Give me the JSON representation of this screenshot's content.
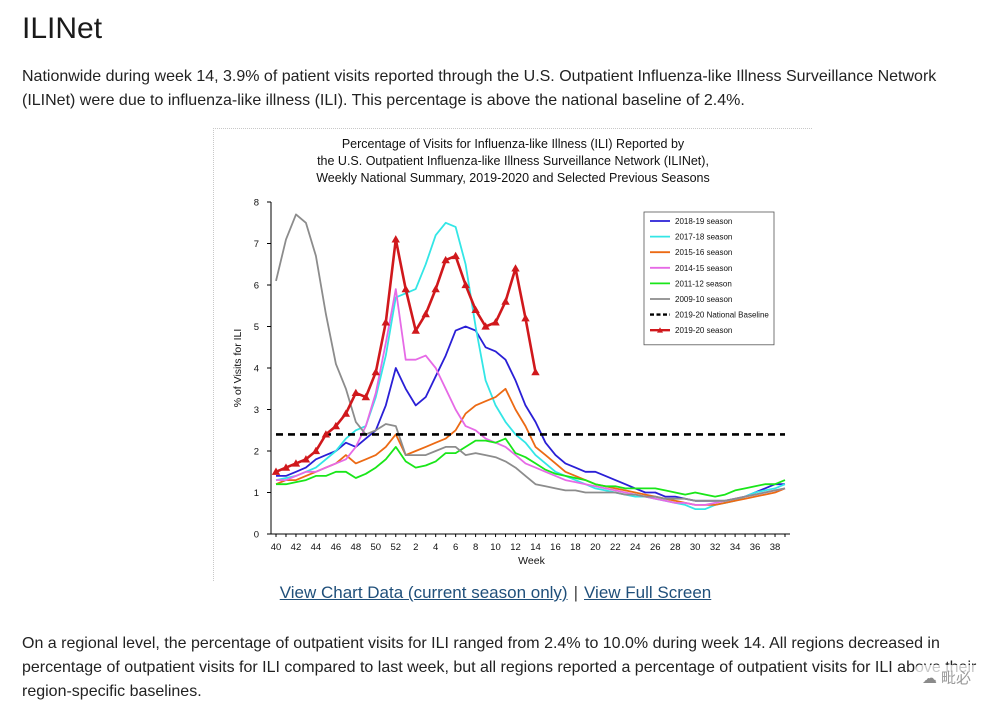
{
  "page": {
    "title": "ILINet",
    "intro": "Nationwide during week 14, 3.9% of patient visits reported through the U.S. Outpatient Influenza-like Illness Surveillance Network (ILINet) were due to influenza-like illness (ILI). This percentage is above the national baseline of 2.4%.",
    "links": {
      "chart_data": "View Chart Data (current season only)",
      "separator": "|",
      "full_screen": "View Full Screen"
    },
    "regional": "On a regional level, the percentage of outpatient visits for ILI ranged from 2.4% to 10.0% during week 14. All regions decreased in percentage of outpatient visits for ILI compared to last week, but all regions reported a percentage of outpatient visits for ILI above their region-specific baselines.",
    "watermark": "毗必"
  },
  "chart_data": {
    "type": "line",
    "title": [
      "Percentage of Visits for Influenza-like Illness (ILI) Reported by",
      "the U.S. Outpatient Influenza-like Illness Surveillance Network (ILINet),",
      "Weekly National Summary, 2019-2020 and Selected Previous Seasons"
    ],
    "xlabel": "Week",
    "ylabel": "% of Visits for ILI",
    "ylim": [
      0,
      8
    ],
    "yticks": [
      "0",
      "1",
      "2",
      "3",
      "4",
      "5",
      "6",
      "7",
      "8"
    ],
    "x_tick_labels": [
      "40",
      "42",
      "44",
      "46",
      "48",
      "50",
      "52",
      "2",
      "4",
      "6",
      "8",
      "10",
      "12",
      "14",
      "16",
      "18",
      "20",
      "22",
      "24",
      "26",
      "28",
      "30",
      "32",
      "34",
      "36",
      "38"
    ],
    "x_weeks": [
      40,
      41,
      42,
      43,
      44,
      45,
      46,
      47,
      48,
      49,
      50,
      51,
      52,
      1,
      2,
      3,
      4,
      5,
      6,
      7,
      8,
      9,
      10,
      11,
      12,
      13,
      14,
      15,
      16,
      17,
      18,
      19,
      20,
      21,
      22,
      23,
      24,
      25,
      26,
      27,
      28,
      29,
      30,
      31,
      32,
      33,
      34,
      35,
      36,
      37,
      38,
      39
    ],
    "legend_position": "top-right",
    "series": [
      {
        "name": "2018-19 season",
        "color": "#2a1fd6",
        "style": "solid",
        "values": [
          1.4,
          1.4,
          1.5,
          1.6,
          1.8,
          1.9,
          2.0,
          2.2,
          2.1,
          2.3,
          2.5,
          3.1,
          4.0,
          3.5,
          3.1,
          3.3,
          3.8,
          4.3,
          4.9,
          5.0,
          4.9,
          4.5,
          4.4,
          4.2,
          3.7,
          3.1,
          2.7,
          2.2,
          1.9,
          1.7,
          1.6,
          1.5,
          1.5,
          1.4,
          1.3,
          1.2,
          1.1,
          1.0,
          1.0,
          0.9,
          0.9,
          0.85,
          0.8,
          0.8,
          0.8,
          0.8,
          0.85,
          0.9,
          1.0,
          1.1,
          1.2,
          1.2
        ]
      },
      {
        "name": "2017-18 season",
        "color": "#33e6e6",
        "style": "solid",
        "values": [
          1.3,
          1.35,
          1.4,
          1.5,
          1.6,
          1.8,
          2.0,
          2.3,
          2.5,
          2.6,
          3.3,
          4.3,
          5.7,
          5.8,
          5.9,
          6.5,
          7.2,
          7.5,
          7.4,
          6.5,
          5.0,
          3.7,
          3.1,
          2.7,
          2.4,
          2.2,
          1.9,
          1.7,
          1.5,
          1.4,
          1.3,
          1.2,
          1.1,
          1.05,
          1.0,
          0.95,
          0.9,
          0.9,
          0.85,
          0.8,
          0.75,
          0.7,
          0.6,
          0.6,
          0.7,
          0.75,
          0.8,
          0.9,
          1.0,
          1.05,
          1.1,
          1.2
        ]
      },
      {
        "name": "2015-16 season",
        "color": "#ec6a14",
        "style": "solid",
        "values": [
          1.2,
          1.3,
          1.3,
          1.4,
          1.5,
          1.6,
          1.7,
          1.9,
          1.7,
          1.8,
          1.9,
          2.1,
          2.4,
          1.9,
          2.0,
          2.1,
          2.2,
          2.3,
          2.5,
          2.9,
          3.1,
          3.2,
          3.3,
          3.5,
          3.0,
          2.6,
          2.1,
          1.9,
          1.7,
          1.5,
          1.4,
          1.3,
          1.2,
          1.15,
          1.1,
          1.05,
          1.0,
          0.95,
          0.9,
          0.85,
          0.8,
          0.75,
          0.7,
          0.7,
          0.7,
          0.75,
          0.8,
          0.85,
          0.9,
          0.95,
          1.0,
          1.1
        ]
      },
      {
        "name": "2014-15 season",
        "color": "#e66ae6",
        "style": "solid",
        "values": [
          1.3,
          1.3,
          1.4,
          1.5,
          1.5,
          1.6,
          1.7,
          1.8,
          2.1,
          2.6,
          3.4,
          4.6,
          5.9,
          4.2,
          4.2,
          4.3,
          4.0,
          3.5,
          3.0,
          2.6,
          2.5,
          2.3,
          2.2,
          2.1,
          1.9,
          1.7,
          1.6,
          1.5,
          1.4,
          1.3,
          1.25,
          1.2,
          1.15,
          1.1,
          1.05,
          1.0,
          0.95,
          0.9,
          0.85,
          0.8,
          0.75,
          0.75,
          0.7,
          0.7,
          0.75,
          0.8,
          0.85,
          0.9,
          0.95,
          1.0,
          1.05,
          1.1
        ]
      },
      {
        "name": "2011-12 season",
        "color": "#19e619",
        "style": "solid",
        "values": [
          1.2,
          1.2,
          1.25,
          1.3,
          1.4,
          1.4,
          1.5,
          1.5,
          1.35,
          1.45,
          1.6,
          1.8,
          2.1,
          1.75,
          1.6,
          1.65,
          1.75,
          1.95,
          1.95,
          2.1,
          2.25,
          2.25,
          2.2,
          2.3,
          1.95,
          1.85,
          1.7,
          1.55,
          1.45,
          1.4,
          1.35,
          1.3,
          1.2,
          1.15,
          1.15,
          1.1,
          1.1,
          1.1,
          1.1,
          1.05,
          1.0,
          0.95,
          1.0,
          0.95,
          0.9,
          0.95,
          1.05,
          1.1,
          1.15,
          1.2,
          1.2,
          1.3
        ]
      },
      {
        "name": "2009-10 season",
        "color": "#8c8c8c",
        "style": "solid",
        "values": [
          6.1,
          7.1,
          7.7,
          7.5,
          6.7,
          5.3,
          4.1,
          3.5,
          2.7,
          2.4,
          2.5,
          2.65,
          2.6,
          1.9,
          1.9,
          1.9,
          2.0,
          2.1,
          2.1,
          1.9,
          1.95,
          1.9,
          1.85,
          1.75,
          1.6,
          1.4,
          1.2,
          1.15,
          1.1,
          1.05,
          1.05,
          1.0,
          1.0,
          1.0,
          1.0,
          0.95,
          0.95,
          0.9,
          0.9,
          0.85,
          0.85,
          0.85,
          0.8,
          0.8,
          0.8,
          0.8,
          0.85,
          0.9,
          0.95,
          1.0,
          1.05,
          1.1
        ]
      },
      {
        "name": "2019-20 National Baseline",
        "color": "#000000",
        "style": "dashed",
        "values": [
          2.4,
          2.4
        ]
      },
      {
        "name": "2019-20 season",
        "color": "#d0181c",
        "style": "triangle",
        "values": [
          1.5,
          1.6,
          1.7,
          1.8,
          2.0,
          2.4,
          2.6,
          2.9,
          3.4,
          3.3,
          3.9,
          5.1,
          7.1,
          5.9,
          4.9,
          5.3,
          5.9,
          6.6,
          6.7,
          6.0,
          5.4,
          5.0,
          5.1,
          5.6,
          6.4,
          5.2,
          3.9
        ]
      }
    ]
  }
}
